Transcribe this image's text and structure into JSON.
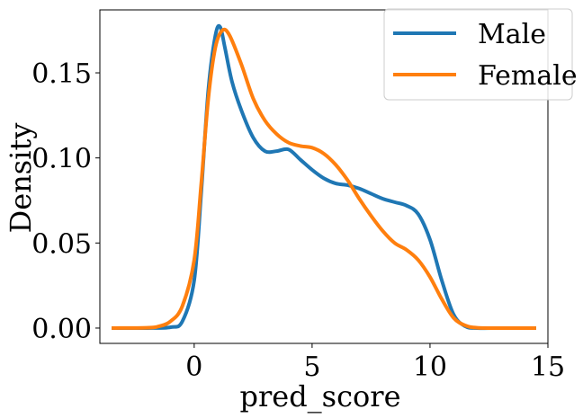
{
  "chart_data": {
    "type": "line",
    "xlabel": "pred_score",
    "ylabel": "Density",
    "xlim": [
      -4,
      15
    ],
    "ylim": [
      -0.009,
      0.187
    ],
    "xticks": [
      0,
      5,
      10,
      15
    ],
    "xtick_labels": [
      "0",
      "5",
      "10",
      "15"
    ],
    "yticks": [
      0.0,
      0.05,
      0.1,
      0.15
    ],
    "ytick_labels": [
      "0.00",
      "0.05",
      "0.10",
      "0.15"
    ],
    "grid": false,
    "legend_position": "top-right",
    "series": [
      {
        "name": "Male",
        "color": "#1f77b4",
        "x": [
          -3.5,
          -2,
          -1,
          -0.5,
          0,
          0.3,
          0.6,
          0.9,
          1.1,
          1.3,
          1.6,
          2,
          2.5,
          3,
          3.5,
          4,
          4.5,
          5,
          5.5,
          6,
          6.5,
          7,
          7.5,
          8,
          8.5,
          9,
          9.5,
          10,
          10.5,
          11,
          11.5,
          12,
          13,
          14.5
        ],
        "y": [
          0.0,
          0.0,
          0.0005,
          0.004,
          0.028,
          0.08,
          0.14,
          0.172,
          0.177,
          0.165,
          0.145,
          0.128,
          0.112,
          0.104,
          0.104,
          0.105,
          0.099,
          0.093,
          0.088,
          0.085,
          0.084,
          0.082,
          0.079,
          0.076,
          0.074,
          0.072,
          0.067,
          0.052,
          0.028,
          0.008,
          0.001,
          0.0,
          0.0,
          0.0
        ]
      },
      {
        "name": "Female",
        "color": "#ff7f0e",
        "x": [
          -3.5,
          -2,
          -1.5,
          -1,
          -0.5,
          0,
          0.3,
          0.6,
          0.9,
          1.2,
          1.5,
          2,
          2.5,
          3,
          3.5,
          4,
          4.5,
          5,
          5.5,
          6,
          6.5,
          7,
          7.5,
          8,
          8.5,
          9,
          9.5,
          10,
          10.5,
          11,
          11.5,
          12,
          13,
          14.5
        ],
        "y": [
          0.0,
          0.0002,
          0.001,
          0.004,
          0.013,
          0.04,
          0.085,
          0.135,
          0.165,
          0.175,
          0.172,
          0.155,
          0.135,
          0.122,
          0.114,
          0.109,
          0.107,
          0.106,
          0.1025,
          0.096,
          0.087,
          0.076,
          0.066,
          0.057,
          0.05,
          0.046,
          0.04,
          0.03,
          0.017,
          0.006,
          0.0015,
          0.0002,
          0.0,
          0.0
        ]
      }
    ]
  }
}
